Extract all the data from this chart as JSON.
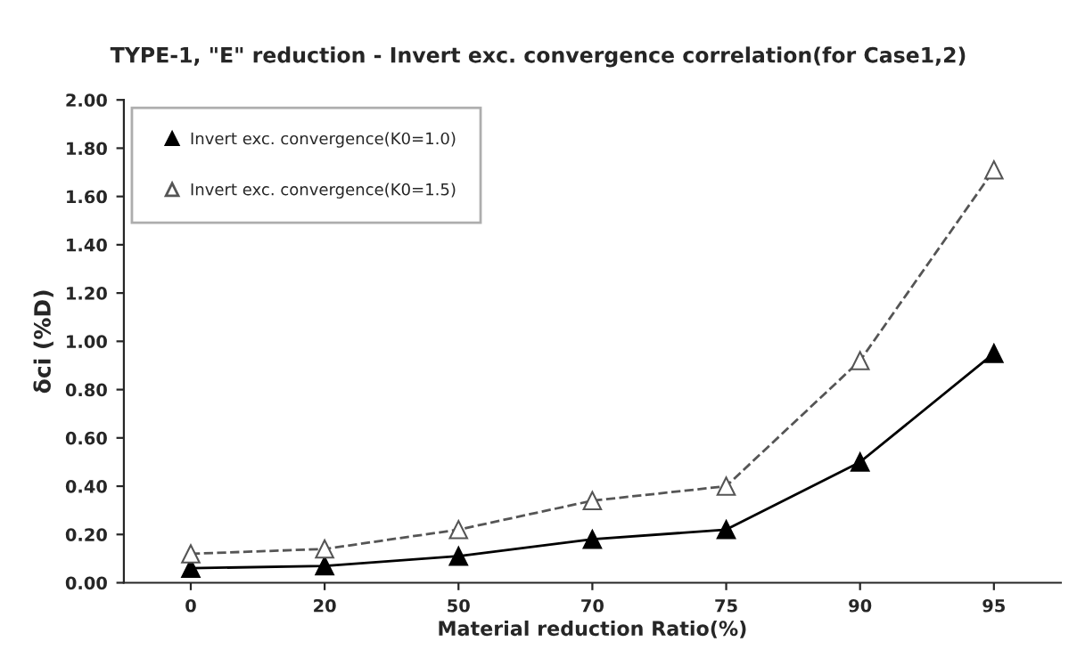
{
  "chart_data": {
    "type": "line",
    "title": "TYPE-1, \"E\" reduction - Invert exc. convergence correlation(for Case1,2)",
    "xlabel": "Material reduction Ratio(%)",
    "ylabel": "δci (%D)",
    "categories": [
      "0",
      "20",
      "50",
      "70",
      "75",
      "90",
      "95"
    ],
    "series": [
      {
        "name": "Invert exc. convergence(K0=1.0)",
        "color": "#000000",
        "values": [
          0.06,
          0.07,
          0.11,
          0.18,
          0.22,
          0.5,
          0.95
        ],
        "marker": "triangle",
        "line_style": "solid"
      },
      {
        "name": "Invert exc. convergence(K0=1.5)",
        "color": "#555555",
        "values": [
          0.12,
          0.14,
          0.22,
          0.34,
          0.4,
          0.92,
          1.71
        ],
        "marker": "triangle",
        "line_style": "dashed"
      }
    ],
    "ylim": [
      0,
      2.0
    ],
    "yticks": [
      {
        "value": 0,
        "label": "0.00"
      },
      {
        "value": 0.2,
        "label": "0.20"
      },
      {
        "value": 0.4,
        "label": "0.40"
      },
      {
        "value": 0.6,
        "label": "0.60"
      },
      {
        "value": 0.8,
        "label": "0.80"
      },
      {
        "value": 1.0,
        "label": "1.00"
      },
      {
        "value": 1.2,
        "label": "1.20"
      },
      {
        "value": 1.4,
        "label": "1.40"
      },
      {
        "value": 1.6,
        "label": "1.60"
      },
      {
        "value": 1.8,
        "label": "1.80"
      },
      {
        "value": 2.0,
        "label": "2.00"
      }
    ],
    "grid": false,
    "legend": "top left"
  }
}
